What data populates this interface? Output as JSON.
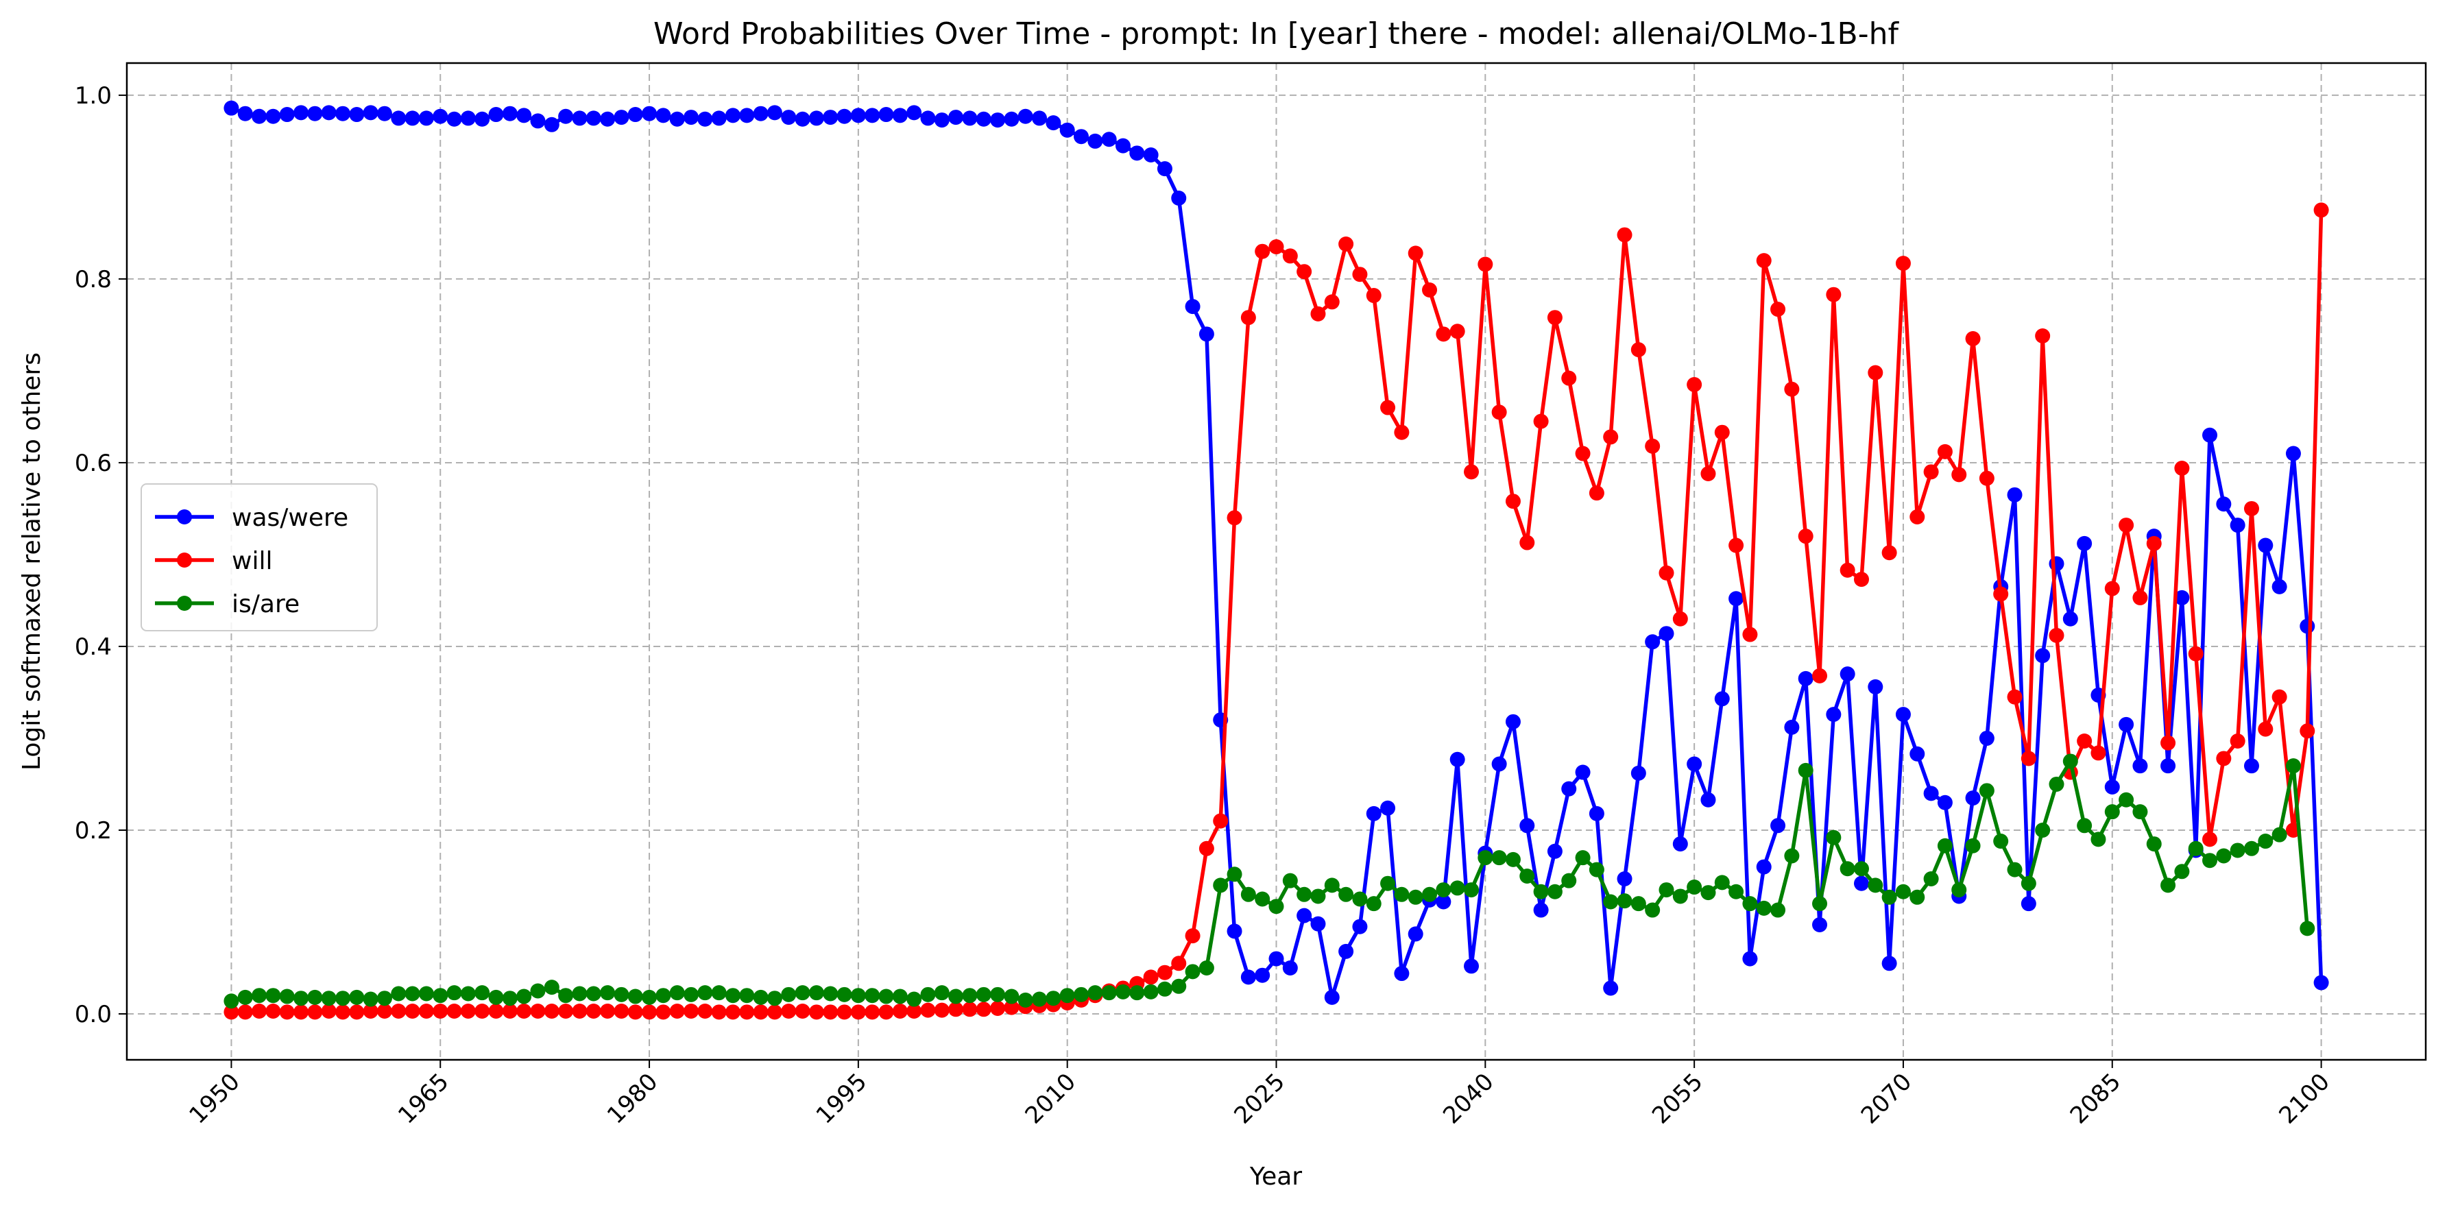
{
  "chart_data": {
    "type": "line",
    "title": "Word Probabilities Over Time - prompt: In [year] there - model: allenai/OLMo-1B-hf",
    "xlabel": "Year",
    "ylabel": "Logit softmaxed relative to others",
    "xlim": [
      1942.5,
      2107.5
    ],
    "ylim": [
      -0.05,
      1.035
    ],
    "xticks": [
      1950,
      1965,
      1980,
      1995,
      2010,
      2025,
      2040,
      2055,
      2070,
      2085,
      2100
    ],
    "yticks": [
      0.0,
      0.2,
      0.4,
      0.6,
      0.8,
      1.0
    ],
    "xtick_labels": [
      "1950",
      "1965",
      "1980",
      "1995",
      "2010",
      "2025",
      "2040",
      "2055",
      "2070",
      "2085",
      "2100"
    ],
    "ytick_labels": [
      "0.0",
      "0.2",
      "0.4",
      "0.6",
      "0.8",
      "1.0"
    ],
    "grid": true,
    "legend_position": "center-left",
    "x_start": 1950,
    "x_end": 2100,
    "series": [
      {
        "name": "was/were",
        "color": "#0000ff",
        "values": [
          0.986,
          0.98,
          0.977,
          0.977,
          0.979,
          0.981,
          0.98,
          0.981,
          0.98,
          0.979,
          0.981,
          0.98,
          0.975,
          0.975,
          0.975,
          0.977,
          0.974,
          0.975,
          0.974,
          0.979,
          0.98,
          0.978,
          0.972,
          0.968,
          0.977,
          0.975,
          0.975,
          0.974,
          0.976,
          0.979,
          0.98,
          0.978,
          0.974,
          0.976,
          0.974,
          0.975,
          0.978,
          0.978,
          0.98,
          0.981,
          0.976,
          0.974,
          0.975,
          0.976,
          0.977,
          0.978,
          0.978,
          0.979,
          0.978,
          0.981,
          0.975,
          0.973,
          0.976,
          0.975,
          0.974,
          0.973,
          0.974,
          0.977,
          0.975,
          0.97,
          0.962,
          0.955,
          0.95,
          0.952,
          0.945,
          0.937,
          0.935,
          0.92,
          0.888,
          0.77,
          0.74,
          0.32,
          0.09,
          0.04,
          0.042,
          0.06,
          0.05,
          0.107,
          0.098,
          0.018,
          0.068,
          0.095,
          0.218,
          0.224,
          0.044,
          0.087,
          0.124,
          0.122,
          0.277,
          0.052,
          0.175,
          0.272,
          0.318,
          0.205,
          0.113,
          0.177,
          0.245,
          0.263,
          0.218,
          0.028,
          0.147,
          0.262,
          0.405,
          0.414,
          0.185,
          0.272,
          0.233,
          0.343,
          0.452,
          0.06,
          0.16,
          0.205,
          0.312,
          0.365,
          0.097,
          0.326,
          0.37,
          0.142,
          0.356,
          0.055,
          0.326,
          0.283,
          0.24,
          0.23,
          0.128,
          0.235,
          0.3,
          0.465,
          0.565,
          0.12,
          0.39,
          0.49,
          0.43,
          0.512,
          0.347,
          0.247,
          0.315,
          0.27,
          0.52,
          0.27,
          0.453,
          0.178,
          0.63,
          0.555,
          0.532,
          0.27,
          0.51,
          0.465,
          0.61,
          0.422,
          0.034
        ]
      },
      {
        "name": "will",
        "color": "#ff0000",
        "values": [
          0.002,
          0.002,
          0.003,
          0.003,
          0.002,
          0.002,
          0.002,
          0.003,
          0.002,
          0.002,
          0.003,
          0.003,
          0.003,
          0.003,
          0.003,
          0.003,
          0.003,
          0.003,
          0.003,
          0.003,
          0.003,
          0.003,
          0.003,
          0.003,
          0.003,
          0.003,
          0.003,
          0.003,
          0.003,
          0.002,
          0.002,
          0.002,
          0.003,
          0.003,
          0.003,
          0.002,
          0.002,
          0.002,
          0.002,
          0.002,
          0.003,
          0.003,
          0.002,
          0.002,
          0.002,
          0.002,
          0.002,
          0.002,
          0.003,
          0.003,
          0.004,
          0.004,
          0.005,
          0.005,
          0.005,
          0.006,
          0.007,
          0.008,
          0.009,
          0.01,
          0.012,
          0.015,
          0.02,
          0.025,
          0.028,
          0.033,
          0.04,
          0.045,
          0.055,
          0.085,
          0.18,
          0.21,
          0.54,
          0.758,
          0.83,
          0.835,
          0.825,
          0.808,
          0.762,
          0.775,
          0.838,
          0.805,
          0.782,
          0.66,
          0.633,
          0.828,
          0.788,
          0.74,
          0.743,
          0.59,
          0.816,
          0.655,
          0.558,
          0.513,
          0.645,
          0.758,
          0.692,
          0.61,
          0.567,
          0.628,
          0.848,
          0.723,
          0.618,
          0.48,
          0.43,
          0.685,
          0.588,
          0.633,
          0.51,
          0.413,
          0.82,
          0.767,
          0.68,
          0.52,
          0.368,
          0.783,
          0.483,
          0.473,
          0.698,
          0.502,
          0.817,
          0.541,
          0.59,
          0.612,
          0.587,
          0.735,
          0.583,
          0.457,
          0.345,
          0.278,
          0.738,
          0.412,
          0.263,
          0.297,
          0.284,
          0.463,
          0.532,
          0.453,
          0.512,
          0.295,
          0.594,
          0.392,
          0.19,
          0.278,
          0.297,
          0.55,
          0.31,
          0.345,
          0.2,
          0.308,
          0.875
        ]
      },
      {
        "name": "is/are",
        "color": "#008000",
        "values": [
          0.014,
          0.018,
          0.02,
          0.02,
          0.019,
          0.017,
          0.018,
          0.017,
          0.017,
          0.018,
          0.016,
          0.017,
          0.022,
          0.022,
          0.022,
          0.02,
          0.023,
          0.022,
          0.023,
          0.018,
          0.017,
          0.019,
          0.025,
          0.029,
          0.02,
          0.022,
          0.022,
          0.023,
          0.021,
          0.019,
          0.018,
          0.02,
          0.023,
          0.021,
          0.023,
          0.023,
          0.02,
          0.02,
          0.018,
          0.017,
          0.021,
          0.023,
          0.023,
          0.022,
          0.021,
          0.02,
          0.02,
          0.019,
          0.019,
          0.016,
          0.021,
          0.023,
          0.019,
          0.02,
          0.021,
          0.021,
          0.019,
          0.015,
          0.016,
          0.017,
          0.02,
          0.021,
          0.023,
          0.023,
          0.024,
          0.023,
          0.024,
          0.027,
          0.03,
          0.046,
          0.05,
          0.14,
          0.152,
          0.13,
          0.125,
          0.117,
          0.145,
          0.13,
          0.128,
          0.14,
          0.13,
          0.125,
          0.12,
          0.142,
          0.13,
          0.127,
          0.13,
          0.135,
          0.137,
          0.135,
          0.17,
          0.17,
          0.168,
          0.15,
          0.133,
          0.133,
          0.145,
          0.17,
          0.157,
          0.122,
          0.123,
          0.12,
          0.113,
          0.135,
          0.128,
          0.138,
          0.132,
          0.143,
          0.133,
          0.12,
          0.115,
          0.113,
          0.172,
          0.265,
          0.12,
          0.192,
          0.158,
          0.158,
          0.14,
          0.127,
          0.133,
          0.127,
          0.147,
          0.183,
          0.135,
          0.183,
          0.243,
          0.188,
          0.157,
          0.142,
          0.2,
          0.25,
          0.275,
          0.205,
          0.19,
          0.22,
          0.233,
          0.22,
          0.185,
          0.14,
          0.155,
          0.18,
          0.167,
          0.172,
          0.178,
          0.18,
          0.188,
          0.195,
          0.27,
          0.093
        ]
      }
    ]
  }
}
